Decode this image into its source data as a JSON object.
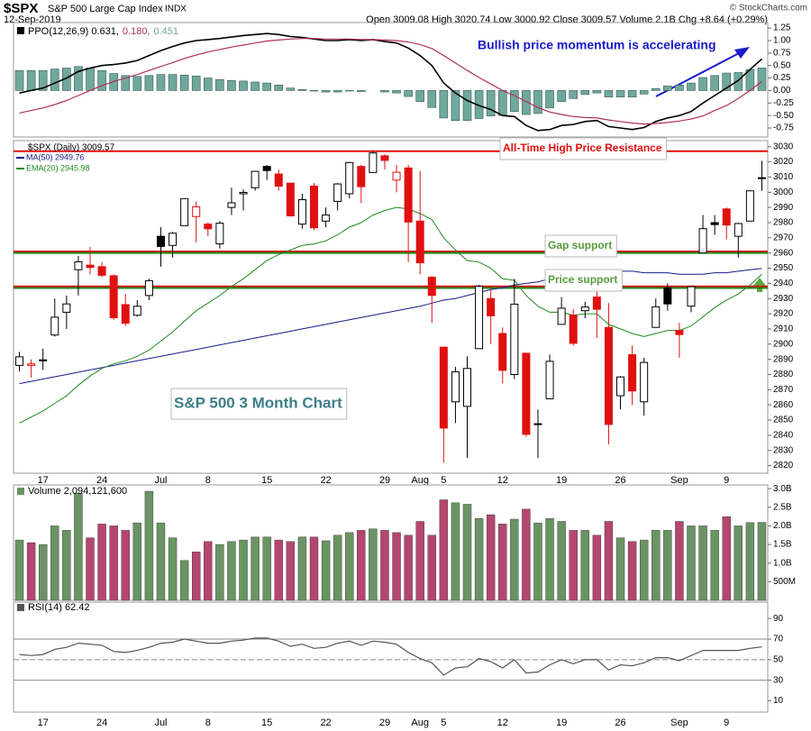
{
  "header": {
    "symbol": "$SPX",
    "name": "S&P 500 Large Cap Index",
    "exchange": "INDX",
    "date": "12-Sep-2019",
    "quote": "Open 3009.08 High 3020.74 Low 3000.92 Close 3009.57 Volume 2.1B Chg +8.64 (+0.29%)",
    "credit": "© StockCharts.com"
  },
  "chart_data": [
    {
      "type": "line",
      "annotation": "Bullish price momentum is accelerating",
      "annotation_color": "#1a1acc",
      "ylim": [
        -0.93,
        1.36
      ],
      "yticks": [
        1.25,
        {
          "value": 1,
          "label": "1.00"
        },
        0.75,
        {
          "value": 0.5,
          "label": "0.50"
        },
        0.25,
        {
          "value": 0,
          "label": "0.00"
        },
        -0.25,
        {
          "value": -0.5,
          "label": "-0.50"
        },
        -0.75
      ],
      "series": [
        {
          "name": "PPO(12,26,9) 0.631,",
          "color": "#000000",
          "style": "line",
          "values": [
            -0.05,
            0.0,
            0.05,
            0.15,
            0.25,
            0.38,
            0.45,
            0.5,
            0.52,
            0.55,
            0.6,
            0.7,
            0.8,
            0.88,
            0.95,
            1.0,
            1.02,
            1.04,
            1.07,
            1.1,
            1.12,
            1.14,
            1.12,
            1.08,
            1.06,
            1.03,
            1.0,
            1.0,
            1.02,
            1.0,
            1.02,
            0.98,
            0.95,
            0.85,
            0.7,
            0.5,
            0.15,
            -0.05,
            -0.2,
            -0.3,
            -0.38,
            -0.5,
            -0.52,
            -0.7,
            -0.8,
            -0.78,
            -0.7,
            -0.68,
            -0.62,
            -0.6,
            -0.72,
            -0.75,
            -0.78,
            -0.74,
            -0.62,
            -0.55,
            -0.5,
            -0.42,
            -0.25,
            -0.1,
            0.05,
            0.2,
            0.42,
            0.631
          ]
        },
        {
          "name": "0.180,",
          "color": "#b0305a",
          "style": "line",
          "values": [
            -0.45,
            -0.4,
            -0.35,
            -0.28,
            -0.2,
            -0.1,
            0.0,
            0.1,
            0.18,
            0.25,
            0.32,
            0.4,
            0.48,
            0.56,
            0.64,
            0.71,
            0.77,
            0.82,
            0.87,
            0.91,
            0.95,
            0.99,
            1.01,
            1.03,
            1.04,
            1.04,
            1.03,
            1.03,
            1.03,
            1.02,
            1.02,
            1.01,
            1.0,
            0.97,
            0.92,
            0.84,
            0.7,
            0.55,
            0.4,
            0.26,
            0.13,
            0.0,
            -0.1,
            -0.22,
            -0.34,
            -0.43,
            -0.48,
            -0.52,
            -0.54,
            -0.55,
            -0.59,
            -0.62,
            -0.65,
            -0.67,
            -0.66,
            -0.64,
            -0.61,
            -0.57,
            -0.51,
            -0.4,
            -0.3,
            -0.16,
            0.0,
            0.18
          ]
        },
        {
          "name": "0.451",
          "color": "#6fa89c",
          "style": "histogram",
          "values": [
            0.4,
            0.4,
            0.4,
            0.43,
            0.45,
            0.48,
            0.45,
            0.4,
            0.34,
            0.3,
            0.28,
            0.3,
            0.32,
            0.32,
            0.31,
            0.29,
            0.25,
            0.22,
            0.2,
            0.19,
            0.17,
            0.15,
            0.11,
            0.05,
            0.02,
            -0.01,
            -0.03,
            -0.03,
            -0.01,
            -0.02,
            0.0,
            -0.03,
            -0.05,
            -0.12,
            -0.22,
            -0.34,
            -0.55,
            -0.6,
            -0.6,
            -0.56,
            -0.51,
            -0.5,
            -0.42,
            -0.48,
            -0.46,
            -0.35,
            -0.22,
            -0.16,
            -0.08,
            -0.05,
            -0.13,
            -0.13,
            -0.13,
            -0.07,
            0.04,
            0.09,
            0.11,
            0.15,
            0.26,
            0.3,
            0.35,
            0.36,
            0.42,
            0.451
          ]
        }
      ]
    },
    {
      "type": "candlestick",
      "name": "$SPX (Daily) 3009.57",
      "categories": [
        null,
        null,
        "17",
        null,
        null,
        null,
        null,
        "24",
        null,
        null,
        null,
        null,
        "Jul",
        null,
        null,
        null,
        "8",
        null,
        null,
        null,
        null,
        "15",
        null,
        null,
        null,
        null,
        "22",
        null,
        null,
        null,
        null,
        "29",
        null,
        null,
        "Aug",
        null,
        "5",
        null,
        null,
        null,
        null,
        "12",
        null,
        null,
        null,
        null,
        "19",
        null,
        null,
        null,
        null,
        "26",
        null,
        null,
        null,
        null,
        "Sep",
        null,
        null,
        null,
        "9",
        null,
        null,
        null
      ],
      "open": [
        2886,
        2886,
        2889,
        2906,
        2921,
        2949,
        2952,
        2951,
        2945,
        2926,
        2919,
        2932,
        2971,
        2965,
        2978,
        2984,
        2979,
        2966,
        2990,
        2999,
        3003,
        3017,
        3012,
        3006,
        2979,
        3004,
        2981,
        2994,
        2999,
        3017,
        3013,
        3024,
        3008,
        3016,
        2981,
        2944,
        2898,
        2862,
        2859,
        2897,
        2930,
        2907,
        2880,
        2894,
        2847,
        2864,
        2913,
        2919,
        2922,
        2931,
        2911,
        2866,
        2893,
        2862,
        2911,
        2937,
        2909,
        2925,
        2960,
        2980,
        2989,
        2971,
        2981,
        3009.08
      ],
      "high": [
        2895,
        2890,
        2897,
        2930,
        2932,
        2958,
        2964,
        2954,
        2946,
        2933,
        2929,
        2943,
        2977,
        2974,
        2996,
        2994,
        2980,
        2981,
        3003,
        3002,
        3014,
        3018,
        3015,
        3006,
        2999,
        3006,
        2990,
        3006,
        3020,
        3018,
        3027,
        3025,
        3018,
        3018,
        3014,
        2945,
        2898,
        2885,
        2892,
        2939,
        2936,
        2911,
        2943,
        2894,
        2857,
        2893,
        2931,
        2923,
        2928,
        2939,
        2927,
        2879,
        2899,
        2891,
        2930,
        2940,
        2914,
        2938,
        2985,
        2985,
        2990,
        2980,
        3001,
        3020.74
      ],
      "low": [
        2882,
        2878,
        2883,
        2905,
        2910,
        2932,
        2946,
        2944,
        2916,
        2912,
        2918,
        2929,
        2951,
        2957,
        2978,
        2967,
        2971,
        2963,
        2985,
        2988,
        3001,
        3008,
        3001,
        2984,
        2976,
        2975,
        2977,
        2988,
        2996,
        2993,
        3013,
        3015,
        3000,
        2954,
        2946,
        2914,
        2822,
        2848,
        2825,
        2897,
        2900,
        2874,
        2877,
        2839,
        2825,
        2864,
        2913,
        2899,
        2917,
        2904,
        2834,
        2857,
        2860,
        2853,
        2911,
        2922,
        2891,
        2921,
        2960,
        2972,
        2969,
        2957,
        2981,
        3000.92
      ],
      "close": [
        2891.64,
        2886.98,
        2889.67,
        2917.75,
        2926.46,
        2954.18,
        2950.46,
        2945.35,
        2917.38,
        2913.78,
        2924.92,
        2941.76,
        2964.33,
        2973.01,
        2995.82,
        2990.41,
        2975.95,
        2979.63,
        2993.07,
        2999.91,
        3013.77,
        3014.3,
        3004.04,
        2984.42,
        2995.11,
        2976.61,
        2985.03,
        3005.47,
        3019.56,
        3003.67,
        3025.86,
        3020.97,
        3013.18,
        2980.38,
        2953.56,
        2932.05,
        2844.74,
        2881.77,
        2883.98,
        2938.09,
        2918.65,
        2882.7,
        2926.32,
        2840.6,
        2847.6,
        2888.68,
        2923.65,
        2900.51,
        2924.43,
        2922.95,
        2847.11,
        2878.38,
        2869.16,
        2887.94,
        2924.58,
        2926.46,
        2906.27,
        2937.78,
        2976.0,
        2978.71,
        2978.43,
        2979.39,
        3000.93,
        3009.57
      ],
      "up_color": "#000000",
      "down_color": "#e01010",
      "series": [
        {
          "name": "MA(50) 2949.76",
          "color": "#1a1a8c",
          "values": [
            2874,
            2875.5,
            2877,
            2878.5,
            2880,
            2881.5,
            2883,
            2884.5,
            2886,
            2887.5,
            2889,
            2890.5,
            2892,
            2893.5,
            2895,
            2896.5,
            2898,
            2899.5,
            2901,
            2902.5,
            2904,
            2905.5,
            2907,
            2908.5,
            2910,
            2911.5,
            2913,
            2914.5,
            2916,
            2917.5,
            2919,
            2920.5,
            2922,
            2923.5,
            2925,
            2927,
            2929,
            2930,
            2932,
            2934,
            2936,
            2937,
            2939,
            2940,
            2941,
            2943,
            2945,
            2946,
            2947,
            2948,
            2948,
            2948,
            2948,
            2947,
            2947,
            2947,
            2946,
            2946,
            2946,
            2947,
            2947,
            2948,
            2949,
            2949.76
          ]
        },
        {
          "name": "EMA(20) 2945.98",
          "color": "#1f8a1f",
          "values": [
            2848,
            2852,
            2856,
            2861,
            2866,
            2873,
            2879,
            2884,
            2887,
            2889,
            2892,
            2896,
            2902,
            2908,
            2915,
            2922,
            2927,
            2932,
            2938,
            2943,
            2949,
            2955,
            2959,
            2962,
            2965,
            2966,
            2968,
            2972,
            2977,
            2980,
            2985,
            2988,
            2990,
            2989,
            2986,
            2982,
            2970,
            2962,
            2955,
            2954,
            2950,
            2943,
            2942,
            2932,
            2925,
            2921,
            2921,
            2919,
            2920,
            2920,
            2913,
            2910,
            2907,
            2905,
            2907,
            2909,
            2909,
            2912,
            2918,
            2924,
            2929,
            2933,
            2939,
            2945.98
          ]
        }
      ],
      "hlines": [
        {
          "value": 3027,
          "color": "#e01010"
        },
        {
          "value": 2961,
          "color": "#e01010"
        },
        {
          "value": 2960,
          "color": "#1a8a1a"
        },
        {
          "value": 2938,
          "color": "#e01010"
        },
        {
          "value": 2937,
          "color": "#1a8a1a"
        }
      ],
      "annotations": [
        {
          "text": "All-Time High Price Resistance",
          "color": "#e01010"
        },
        {
          "text": "Gap support",
          "color": "#5a9a3a"
        },
        {
          "text": "Price support",
          "color": "#5a9a3a"
        },
        {
          "text": "S&P 500 3 Month Chart",
          "color": "#3d7d88"
        }
      ],
      "ylim": [
        2815,
        3034
      ],
      "yticks": [
        2820,
        2830,
        2840,
        2850,
        2860,
        2870,
        2880,
        2890,
        2900,
        2910,
        2920,
        2930,
        2940,
        2950,
        2960,
        2970,
        2980,
        2990,
        3000,
        3010,
        3020,
        3030
      ]
    },
    {
      "type": "bar",
      "title": "Volume 2,094,121,600",
      "up_color": "#6a9463",
      "down_color": "#b5466f",
      "values": [
        1.62,
        1.55,
        1.5,
        2.0,
        1.88,
        2.88,
        1.68,
        2.05,
        2.0,
        1.88,
        2.08,
        2.93,
        2.08,
        1.68,
        1.07,
        1.3,
        1.58,
        1.5,
        1.58,
        1.62,
        1.7,
        1.7,
        1.62,
        1.58,
        1.7,
        1.7,
        1.6,
        1.75,
        1.82,
        1.88,
        1.92,
        1.88,
        1.82,
        1.75,
        2.12,
        1.75,
        2.7,
        2.62,
        2.58,
        2.2,
        2.3,
        2.05,
        2.18,
        2.45,
        2.08,
        2.2,
        2.12,
        1.88,
        1.88,
        1.75,
        2.12,
        1.68,
        1.58,
        1.62,
        1.88,
        1.88,
        2.12,
        2.0,
        2.0,
        1.88,
        2.25,
        2.0,
        2.09,
        2.0941216
      ],
      "ylim": [
        0,
        3.1
      ],
      "yticks": [
        {
          "value": 0.5,
          "label": "500M"
        },
        {
          "value": 1,
          "label": "1.0B"
        },
        {
          "value": 1.5,
          "label": "1.5B"
        },
        {
          "value": 2,
          "label": "2.0B"
        },
        {
          "value": 2.5,
          "label": "2.5B"
        },
        {
          "value": 3,
          "label": "3.0B"
        }
      ]
    },
    {
      "type": "line",
      "title": "RSI(14) 62.42",
      "color": "#555555",
      "categories": [
        null,
        null,
        "17",
        null,
        null,
        null,
        null,
        "24",
        null,
        null,
        null,
        null,
        "Jul",
        null,
        null,
        null,
        "8",
        null,
        null,
        null,
        null,
        "15",
        null,
        null,
        null,
        null,
        "22",
        null,
        null,
        null,
        null,
        "29",
        null,
        null,
        "Aug",
        null,
        "5",
        null,
        null,
        null,
        null,
        "12",
        null,
        null,
        null,
        null,
        "19",
        null,
        null,
        null,
        null,
        "26",
        null,
        null,
        null,
        null,
        "Sep",
        null,
        null,
        null,
        "9",
        null,
        null,
        null
      ],
      "values": [
        55,
        54,
        55,
        60,
        62,
        66,
        65,
        64,
        58,
        57,
        59,
        62,
        66,
        67,
        70,
        68,
        66,
        66,
        68,
        69,
        71,
        71,
        68,
        63,
        65,
        61,
        62,
        66,
        68,
        64,
        68,
        67,
        65,
        57,
        51,
        47,
        35,
        42,
        43,
        51,
        48,
        42,
        50,
        37,
        38,
        45,
        50,
        46,
        50,
        50,
        40,
        45,
        44,
        47,
        52,
        52,
        49,
        54,
        59,
        59,
        59,
        59,
        61,
        62.42
      ],
      "hlines": [
        70,
        50,
        30
      ],
      "ylim": [
        -1,
        106
      ],
      "yticks": [
        90,
        70,
        50,
        30,
        10
      ]
    }
  ]
}
